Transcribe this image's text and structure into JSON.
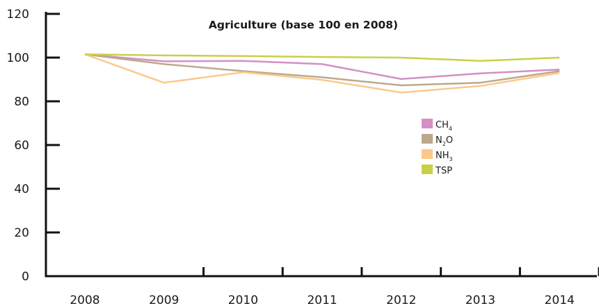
{
  "chart_data": {
    "type": "line",
    "title": "Agriculture (base 100 en 2008)",
    "xlabel": "",
    "ylabel": "",
    "categories": [
      "2008",
      "2009",
      "2010",
      "2011",
      "2012",
      "2013",
      "2014"
    ],
    "ylim": [
      0,
      120
    ],
    "yticks": [
      "0",
      "20",
      "40",
      "60",
      "80",
      "100",
      "120"
    ],
    "grid": false,
    "legend_position": "center-right",
    "series": [
      {
        "name": "CH4",
        "label_main": "CH",
        "label_sub": "4",
        "label_suffix": "",
        "color": "#d48fc4",
        "values": [
          101.5,
          98.3,
          98.5,
          97.0,
          90.2,
          92.8,
          94.5
        ]
      },
      {
        "name": "N2O",
        "label_main": "N",
        "label_sub": "2",
        "label_suffix": "O",
        "color": "#bca98b",
        "values": [
          101.5,
          97.0,
          93.8,
          91.0,
          87.3,
          88.5,
          93.8
        ]
      },
      {
        "name": "NH3",
        "label_main": "NH",
        "label_sub": "3",
        "label_suffix": "",
        "color": "#fbc98a",
        "values": [
          101.5,
          88.5,
          93.3,
          89.8,
          84.0,
          87.0,
          93.0
        ]
      },
      {
        "name": "TSP",
        "label_main": "TSP",
        "label_sub": "",
        "label_suffix": "",
        "color": "#c8d048",
        "values": [
          101.5,
          101.0,
          100.7,
          100.3,
          100.0,
          98.5,
          100.0
        ]
      }
    ]
  }
}
